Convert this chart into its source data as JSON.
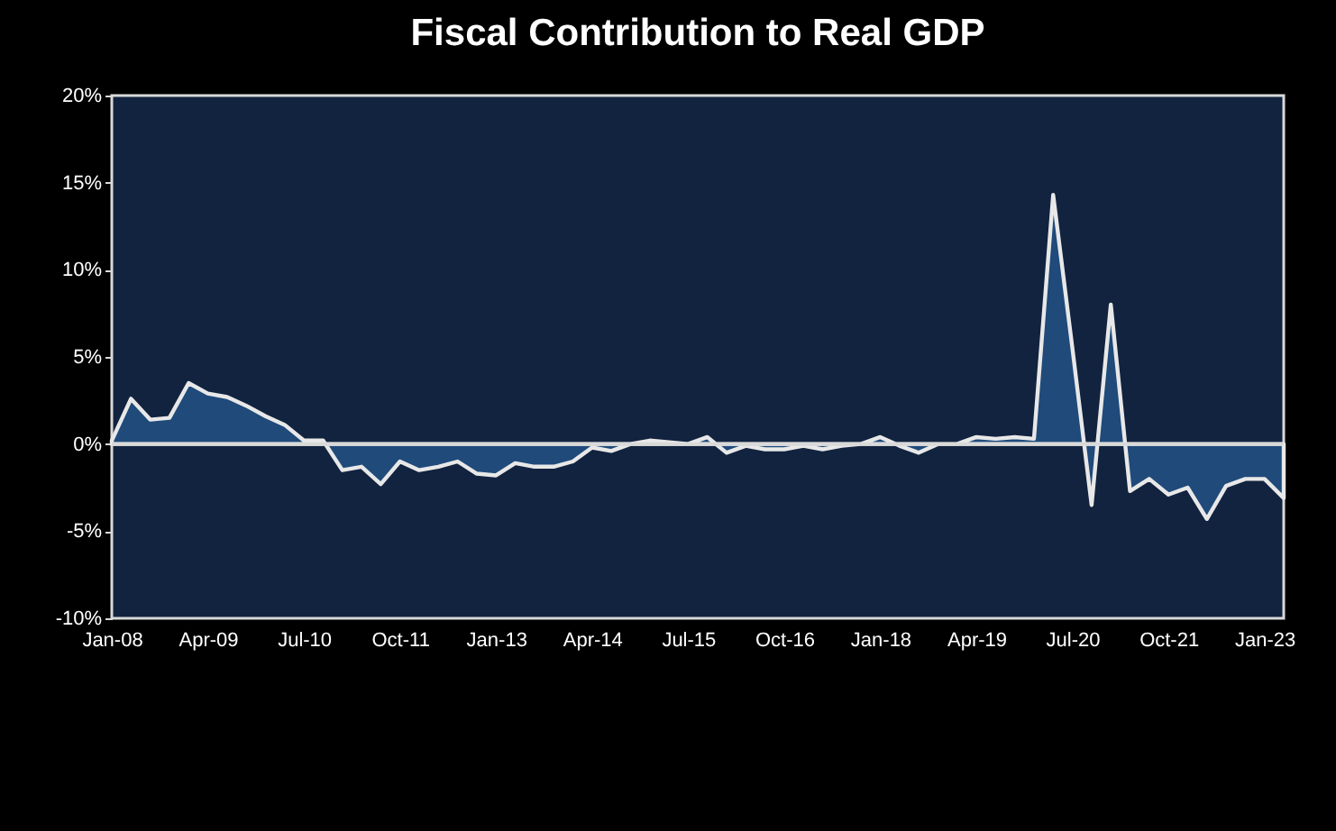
{
  "chart_data": {
    "type": "area",
    "title": "Fiscal Contribution to Real GDP",
    "categories": [
      "Jan-08",
      null,
      null,
      null,
      null,
      "Apr-09",
      null,
      null,
      null,
      null,
      "Jul-10",
      null,
      null,
      null,
      null,
      "Oct-11",
      null,
      null,
      null,
      null,
      "Jan-13",
      null,
      null,
      null,
      null,
      "Apr-14",
      null,
      null,
      null,
      null,
      "Jul-15",
      null,
      null,
      null,
      null,
      "Oct-16",
      null,
      null,
      null,
      null,
      "Jan-18",
      null,
      null,
      null,
      null,
      "Apr-19",
      null,
      null,
      null,
      null,
      "Jul-20",
      null,
      null,
      null,
      null,
      "Oct-21",
      null,
      null,
      null,
      null,
      "Jan-23",
      null
    ],
    "series": [
      {
        "color": "#1f4a7a",
        "values": [
          0.2,
          2.6,
          1.4,
          1.5,
          3.5,
          2.9,
          2.7,
          2.2,
          1.6,
          1.1,
          0.2,
          0.2,
          -1.5,
          -1.3,
          -2.3,
          -1.0,
          -1.5,
          -1.3,
          -1.0,
          -1.7,
          -1.8,
          -1.1,
          -1.3,
          -1.3,
          -1.0,
          -0.2,
          -0.4,
          0.0,
          0.2,
          0.1,
          0.0,
          0.4,
          -0.5,
          -0.1,
          -0.3,
          -0.3,
          -0.1,
          -0.3,
          -0.1,
          0.0,
          0.4,
          -0.1,
          -0.5,
          0.0,
          0.0,
          0.4,
          0.3,
          0.4,
          0.3,
          14.3,
          5.5,
          -3.5,
          8.0,
          -2.7,
          -2.0,
          -2.9,
          -2.5,
          -4.3,
          -2.4,
          -2.0,
          -2.0,
          -3.1
        ]
      }
    ],
    "ylim": [
      -10,
      20
    ],
    "yticks": [
      {
        "value": -10,
        "label": "-10%"
      },
      {
        "value": -5,
        "label": "-5%"
      },
      {
        "value": 0,
        "label": "0%"
      },
      {
        "value": 5,
        "label": "5%"
      },
      {
        "value": 10,
        "label": "10%"
      },
      {
        "value": 15,
        "label": "15%"
      },
      {
        "value": 20,
        "label": "20%"
      }
    ],
    "ref_lines": [
      {
        "axis": "y",
        "value": 0,
        "color": "#d9d9d9"
      }
    ],
    "grid": false
  }
}
